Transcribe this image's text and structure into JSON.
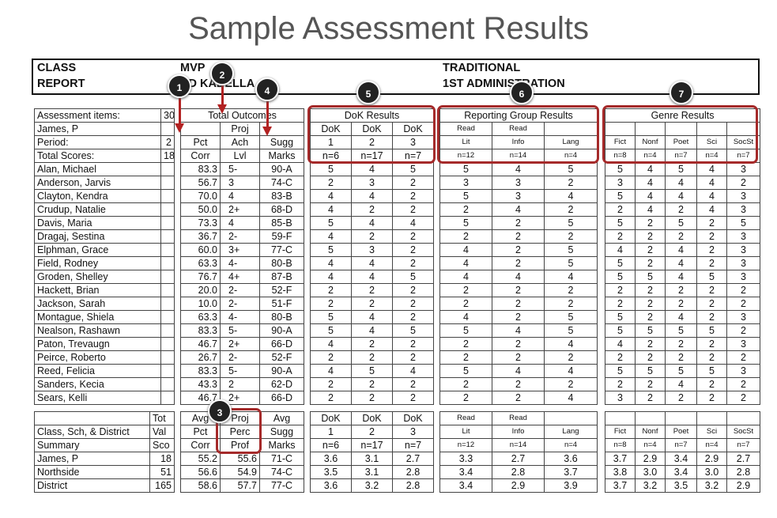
{
  "page_title": "Sample Assessment Results",
  "header": {
    "left1": "CLASS",
    "left2": "REPORT",
    "mid1": "MVP",
    "mid2": "RD KADELLA",
    "right1": "TRADITIONAL",
    "right2": "1ST ADMINISTRATION"
  },
  "info": {
    "r1": [
      "Assessment items:",
      "30"
    ],
    "r2": [
      "James, P",
      ""
    ],
    "r3": [
      "Period:",
      "2"
    ],
    "r4": [
      "Total Scores:",
      "18"
    ]
  },
  "titles": {
    "outcomes": "Total Outcomes",
    "dok": "DoK Results",
    "rep": "Reporting Group Results",
    "genre": "Genre Results"
  },
  "outcome_headers": [
    [
      "",
      "Proj",
      ""
    ],
    [
      "Pct",
      "Ach",
      "Sugg"
    ],
    [
      "Corr",
      "Lvl",
      "Marks"
    ]
  ],
  "dok_headers": [
    [
      "DoK",
      "DoK",
      "DoK"
    ],
    [
      "1",
      "2",
      "3"
    ],
    [
      "n=6",
      "n=17",
      "n=7"
    ]
  ],
  "rep_headers": [
    [
      "Read",
      "Read",
      ""
    ],
    [
      "Lit",
      "Info",
      "Lang"
    ],
    [
      "n=12",
      "n=14",
      "n=4"
    ]
  ],
  "genre_headers": [
    [
      "Fict",
      "Nonf",
      "Poet",
      "Sci",
      "SocSt"
    ],
    [
      "n=8",
      "n=4",
      "n=7",
      "n=4",
      "n=7"
    ]
  ],
  "students": [
    {
      "name": "Alan, Michael",
      "pct": "83.3",
      "lvl": "5-",
      "mark": "90-A",
      "dok": [
        "5",
        "4",
        "5"
      ],
      "rep": [
        "5",
        "4",
        "5"
      ],
      "genre": [
        "5",
        "4",
        "5",
        "4",
        "3"
      ]
    },
    {
      "name": "Anderson, Jarvis",
      "pct": "56.7",
      "lvl": "3",
      "mark": "74-C",
      "dok": [
        "2",
        "3",
        "2"
      ],
      "rep": [
        "3",
        "3",
        "2"
      ],
      "genre": [
        "3",
        "4",
        "4",
        "4",
        "2"
      ]
    },
    {
      "name": "Clayton, Kendra",
      "pct": "70.0",
      "lvl": "4",
      "mark": "83-B",
      "dok": [
        "4",
        "4",
        "2"
      ],
      "rep": [
        "5",
        "3",
        "4"
      ],
      "genre": [
        "5",
        "4",
        "4",
        "4",
        "3"
      ]
    },
    {
      "name": "Crudup, Natalie",
      "pct": "50.0",
      "lvl": "2+",
      "mark": "68-D",
      "dok": [
        "4",
        "2",
        "2"
      ],
      "rep": [
        "2",
        "4",
        "2"
      ],
      "genre": [
        "2",
        "4",
        "2",
        "4",
        "3"
      ]
    },
    {
      "name": "Davis, Maria",
      "pct": "73.3",
      "lvl": "4",
      "mark": "85-B",
      "dok": [
        "5",
        "4",
        "4"
      ],
      "rep": [
        "5",
        "2",
        "5"
      ],
      "genre": [
        "5",
        "2",
        "5",
        "2",
        "5"
      ]
    },
    {
      "name": "Dragaj, Sestina",
      "pct": "36.7",
      "lvl": "2-",
      "mark": "59-F",
      "dok": [
        "4",
        "2",
        "2"
      ],
      "rep": [
        "2",
        "2",
        "2"
      ],
      "genre": [
        "2",
        "2",
        "2",
        "2",
        "3"
      ]
    },
    {
      "name": "Elphman, Grace",
      "pct": "60.0",
      "lvl": "3+",
      "mark": "77-C",
      "dok": [
        "5",
        "3",
        "2"
      ],
      "rep": [
        "4",
        "2",
        "5"
      ],
      "genre": [
        "4",
        "2",
        "4",
        "2",
        "3"
      ]
    },
    {
      "name": "Field, Rodney",
      "pct": "63.3",
      "lvl": "4-",
      "mark": "80-B",
      "dok": [
        "4",
        "4",
        "2"
      ],
      "rep": [
        "4",
        "2",
        "5"
      ],
      "genre": [
        "5",
        "2",
        "4",
        "2",
        "3"
      ]
    },
    {
      "name": "Groden, Shelley",
      "pct": "76.7",
      "lvl": "4+",
      "mark": "87-B",
      "dok": [
        "4",
        "4",
        "5"
      ],
      "rep": [
        "4",
        "4",
        "4"
      ],
      "genre": [
        "5",
        "5",
        "4",
        "5",
        "3"
      ]
    },
    {
      "name": "Hackett, Brian",
      "pct": "20.0",
      "lvl": "2-",
      "mark": "52-F",
      "dok": [
        "2",
        "2",
        "2"
      ],
      "rep": [
        "2",
        "2",
        "2"
      ],
      "genre": [
        "2",
        "2",
        "2",
        "2",
        "2"
      ]
    },
    {
      "name": "Jackson, Sarah",
      "pct": "10.0",
      "lvl": "2-",
      "mark": "51-F",
      "dok": [
        "2",
        "2",
        "2"
      ],
      "rep": [
        "2",
        "2",
        "2"
      ],
      "genre": [
        "2",
        "2",
        "2",
        "2",
        "2"
      ]
    },
    {
      "name": "Montague, Shiela",
      "pct": "63.3",
      "lvl": "4-",
      "mark": "80-B",
      "dok": [
        "5",
        "4",
        "2"
      ],
      "rep": [
        "4",
        "2",
        "5"
      ],
      "genre": [
        "5",
        "2",
        "4",
        "2",
        "3"
      ]
    },
    {
      "name": "Nealson, Rashawn",
      "pct": "83.3",
      "lvl": "5-",
      "mark": "90-A",
      "dok": [
        "5",
        "4",
        "5"
      ],
      "rep": [
        "5",
        "4",
        "5"
      ],
      "genre": [
        "5",
        "5",
        "5",
        "5",
        "2"
      ]
    },
    {
      "name": "Paton, Trevaugn",
      "pct": "46.7",
      "lvl": "2+",
      "mark": "66-D",
      "dok": [
        "4",
        "2",
        "2"
      ],
      "rep": [
        "2",
        "2",
        "4"
      ],
      "genre": [
        "4",
        "2",
        "2",
        "2",
        "3"
      ]
    },
    {
      "name": "Peirce, Roberto",
      "pct": "26.7",
      "lvl": "2-",
      "mark": "52-F",
      "dok": [
        "2",
        "2",
        "2"
      ],
      "rep": [
        "2",
        "2",
        "2"
      ],
      "genre": [
        "2",
        "2",
        "2",
        "2",
        "2"
      ]
    },
    {
      "name": "Reed, Felicia",
      "pct": "83.3",
      "lvl": "5-",
      "mark": "90-A",
      "dok": [
        "4",
        "5",
        "4"
      ],
      "rep": [
        "5",
        "4",
        "4"
      ],
      "genre": [
        "5",
        "5",
        "5",
        "5",
        "3"
      ]
    },
    {
      "name": "Sanders, Kecia",
      "pct": "43.3",
      "lvl": "2",
      "mark": "62-D",
      "dok": [
        "2",
        "2",
        "2"
      ],
      "rep": [
        "2",
        "2",
        "2"
      ],
      "genre": [
        "2",
        "2",
        "4",
        "2",
        "2"
      ]
    },
    {
      "name": "Sears, Kelli",
      "pct": "46.7",
      "lvl": "2+",
      "mark": "66-D",
      "dok": [
        "2",
        "2",
        "2"
      ],
      "rep": [
        "2",
        "2",
        "4"
      ],
      "genre": [
        "3",
        "2",
        "2",
        "2",
        "2"
      ]
    }
  ],
  "summary_headers": {
    "name": [
      "",
      "Class, Sch, & District",
      "Summary"
    ],
    "tot": [
      "Tot",
      "Val",
      "Sco"
    ],
    "outcomes": [
      [
        "Avg",
        "Proj",
        "Avg"
      ],
      [
        "Pct",
        "Perc",
        "Sugg"
      ],
      [
        "Corr",
        "Prof",
        "Marks"
      ]
    ]
  },
  "summary": [
    {
      "name": "James, P",
      "tot": "18",
      "pct": "55.2",
      "prof": "55.6",
      "mark": "71-C",
      "dok": [
        "3.6",
        "3.1",
        "2.7"
      ],
      "rep": [
        "3.3",
        "2.7",
        "3.6"
      ],
      "genre": [
        "3.7",
        "2.9",
        "3.4",
        "2.9",
        "2.7"
      ]
    },
    {
      "name": "Northside",
      "tot": "51",
      "pct": "56.6",
      "prof": "54.9",
      "mark": "74-C",
      "dok": [
        "3.5",
        "3.1",
        "2.8"
      ],
      "rep": [
        "3.4",
        "2.8",
        "3.7"
      ],
      "genre": [
        "3.8",
        "3.0",
        "3.4",
        "3.0",
        "2.8"
      ]
    },
    {
      "name": "District",
      "tot": "165",
      "pct": "58.6",
      "prof": "57.7",
      "mark": "77-C",
      "dok": [
        "3.6",
        "3.2",
        "2.8"
      ],
      "rep": [
        "3.4",
        "2.9",
        "3.9"
      ],
      "genre": [
        "3.7",
        "3.2",
        "3.5",
        "3.2",
        "2.9"
      ]
    }
  ],
  "markers": [
    "1",
    "2",
    "3",
    "4",
    "5",
    "6",
    "7"
  ],
  "colors": {
    "highlight": "#a52a2a",
    "marker": "#222222",
    "arrow": "#b22222"
  }
}
